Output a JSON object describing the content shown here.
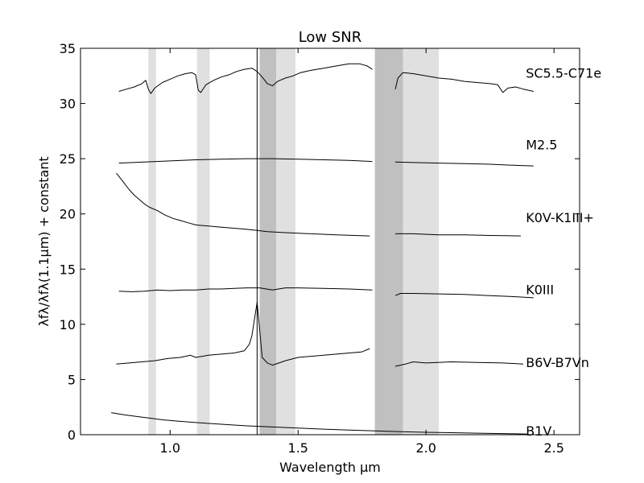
{
  "chart_data": {
    "type": "line",
    "title": "Low SNR",
    "xlabel": "Wavelength μm",
    "ylabel": "λfλ/λfλ(1.1μm) + constant",
    "xlim": [
      0.65,
      2.6
    ],
    "ylim": [
      0,
      35
    ],
    "x_ticks": [
      {
        "value": 1.0,
        "label": "1.0"
      },
      {
        "value": 1.5,
        "label": "1.5"
      },
      {
        "value": 2.0,
        "label": "2.0"
      },
      {
        "value": 2.5,
        "label": "2.5"
      }
    ],
    "y_ticks": [
      {
        "value": 0,
        "label": "0"
      },
      {
        "value": 5,
        "label": "5"
      },
      {
        "value": 10,
        "label": "10"
      },
      {
        "value": 15,
        "label": "15"
      },
      {
        "value": 20,
        "label": "20"
      },
      {
        "value": 25,
        "label": "25"
      },
      {
        "value": 30,
        "label": "30"
      },
      {
        "value": 35,
        "label": "35"
      }
    ],
    "shaded_bands": [
      {
        "x0": 0.915,
        "x1": 0.945,
        "color": "#e0e0e0"
      },
      {
        "x0": 1.105,
        "x1": 1.155,
        "color": "#e0e0e0"
      },
      {
        "x0": 1.35,
        "x1": 1.415,
        "color": "#c0c0c0"
      },
      {
        "x0": 1.415,
        "x1": 1.49,
        "color": "#e0e0e0"
      },
      {
        "x0": 1.8,
        "x1": 1.91,
        "color": "#c0c0c0"
      },
      {
        "x0": 1.91,
        "x1": 2.05,
        "color": "#e0e0e0"
      }
    ],
    "vertical_line": {
      "x": 1.34,
      "color": "#000000"
    },
    "grid": false,
    "legend": "none",
    "series": [
      {
        "name": "SC5.5-C71e",
        "label_pos": {
          "x": 2.39,
          "y": 32.7
        },
        "segments": [
          [
            [
              0.8,
              31.1
            ],
            [
              0.83,
              31.3
            ],
            [
              0.86,
              31.5
            ],
            [
              0.89,
              31.8
            ],
            [
              0.905,
              32.1
            ],
            [
              0.915,
              31.3
            ],
            [
              0.925,
              30.9
            ],
            [
              0.94,
              31.4
            ],
            [
              0.97,
              31.9
            ],
            [
              1.0,
              32.2
            ],
            [
              1.03,
              32.5
            ],
            [
              1.06,
              32.7
            ],
            [
              1.085,
              32.8
            ],
            [
              1.1,
              32.6
            ],
            [
              1.11,
              31.2
            ],
            [
              1.12,
              31.0
            ],
            [
              1.14,
              31.7
            ],
            [
              1.17,
              32.1
            ],
            [
              1.2,
              32.4
            ],
            [
              1.23,
              32.6
            ],
            [
              1.26,
              32.9
            ],
            [
              1.29,
              33.1
            ],
            [
              1.32,
              33.2
            ],
            [
              1.34,
              32.9
            ],
            [
              1.36,
              32.4
            ],
            [
              1.38,
              31.8
            ],
            [
              1.4,
              31.6
            ],
            [
              1.42,
              32.0
            ],
            [
              1.45,
              32.3
            ],
            [
              1.48,
              32.5
            ],
            [
              1.51,
              32.8
            ],
            [
              1.55,
              33.0
            ],
            [
              1.6,
              33.2
            ],
            [
              1.65,
              33.4
            ],
            [
              1.7,
              33.6
            ],
            [
              1.74,
              33.6
            ],
            [
              1.77,
              33.4
            ],
            [
              1.79,
              33.1
            ]
          ],
          [
            [
              1.88,
              31.3
            ],
            [
              1.89,
              32.3
            ],
            [
              1.91,
              32.8
            ],
            [
              1.95,
              32.7
            ],
            [
              2.0,
              32.5
            ],
            [
              2.05,
              32.3
            ],
            [
              2.1,
              32.2
            ],
            [
              2.15,
              32.0
            ],
            [
              2.2,
              31.9
            ],
            [
              2.25,
              31.8
            ],
            [
              2.28,
              31.7
            ],
            [
              2.3,
              31.0
            ],
            [
              2.32,
              31.4
            ],
            [
              2.35,
              31.5
            ],
            [
              2.38,
              31.3
            ],
            [
              2.42,
              31.1
            ]
          ]
        ]
      },
      {
        "name": "M2.5",
        "label_pos": {
          "x": 2.39,
          "y": 26.2
        },
        "segments": [
          [
            [
              0.8,
              24.6
            ],
            [
              0.9,
              24.7
            ],
            [
              1.0,
              24.8
            ],
            [
              1.1,
              24.9
            ],
            [
              1.2,
              24.95
            ],
            [
              1.3,
              25.0
            ],
            [
              1.4,
              25.0
            ],
            [
              1.5,
              24.95
            ],
            [
              1.6,
              24.9
            ],
            [
              1.7,
              24.85
            ],
            [
              1.79,
              24.75
            ]
          ],
          [
            [
              1.88,
              24.7
            ],
            [
              1.95,
              24.65
            ],
            [
              2.05,
              24.6
            ],
            [
              2.15,
              24.55
            ],
            [
              2.25,
              24.5
            ],
            [
              2.35,
              24.4
            ],
            [
              2.42,
              24.35
            ]
          ]
        ]
      },
      {
        "name": "K0V-K1III+",
        "label_pos": {
          "x": 2.39,
          "y": 19.6
        },
        "segments": [
          [
            [
              0.79,
              23.7
            ],
            [
              0.8,
              23.4
            ],
            [
              0.82,
              22.8
            ],
            [
              0.84,
              22.2
            ],
            [
              0.86,
              21.7
            ],
            [
              0.88,
              21.3
            ],
            [
              0.9,
              20.9
            ],
            [
              0.92,
              20.6
            ],
            [
              0.95,
              20.3
            ],
            [
              0.98,
              19.9
            ],
            [
              1.01,
              19.6
            ],
            [
              1.04,
              19.4
            ],
            [
              1.07,
              19.2
            ],
            [
              1.1,
              19.0
            ],
            [
              1.15,
              18.9
            ],
            [
              1.2,
              18.8
            ],
            [
              1.25,
              18.7
            ],
            [
              1.3,
              18.6
            ],
            [
              1.34,
              18.5
            ],
            [
              1.38,
              18.4
            ],
            [
              1.45,
              18.3
            ],
            [
              1.55,
              18.2
            ],
            [
              1.65,
              18.1
            ],
            [
              1.78,
              18.0
            ]
          ],
          [
            [
              1.88,
              18.2
            ],
            [
              1.95,
              18.2
            ],
            [
              2.05,
              18.1
            ],
            [
              2.15,
              18.1
            ],
            [
              2.25,
              18.05
            ],
            [
              2.37,
              18.0
            ]
          ]
        ]
      },
      {
        "name": "K0III",
        "label_pos": {
          "x": 2.39,
          "y": 13.1
        },
        "segments": [
          [
            [
              0.8,
              13.0
            ],
            [
              0.85,
              12.95
            ],
            [
              0.9,
              13.0
            ],
            [
              0.95,
              13.1
            ],
            [
              1.0,
              13.05
            ],
            [
              1.05,
              13.1
            ],
            [
              1.1,
              13.1
            ],
            [
              1.15,
              13.2
            ],
            [
              1.2,
              13.2
            ],
            [
              1.25,
              13.25
            ],
            [
              1.3,
              13.3
            ],
            [
              1.35,
              13.3
            ],
            [
              1.4,
              13.1
            ],
            [
              1.45,
              13.3
            ],
            [
              1.5,
              13.3
            ],
            [
              1.6,
              13.25
            ],
            [
              1.7,
              13.2
            ],
            [
              1.79,
              13.1
            ]
          ],
          [
            [
              1.88,
              12.6
            ],
            [
              1.9,
              12.8
            ],
            [
              1.95,
              12.8
            ],
            [
              2.05,
              12.75
            ],
            [
              2.15,
              12.7
            ],
            [
              2.25,
              12.6
            ],
            [
              2.35,
              12.5
            ],
            [
              2.42,
              12.4
            ]
          ]
        ]
      },
      {
        "name": "B6V-B7Vn",
        "label_pos": {
          "x": 2.39,
          "y": 6.5
        },
        "segments": [
          [
            [
              0.79,
              6.4
            ],
            [
              0.84,
              6.5
            ],
            [
              0.89,
              6.6
            ],
            [
              0.94,
              6.7
            ],
            [
              0.99,
              6.9
            ],
            [
              1.04,
              7.0
            ],
            [
              1.08,
              7.2
            ],
            [
              1.1,
              7.0
            ],
            [
              1.15,
              7.2
            ],
            [
              1.2,
              7.3
            ],
            [
              1.25,
              7.4
            ],
            [
              1.29,
              7.6
            ],
            [
              1.31,
              8.2
            ],
            [
              1.32,
              9.0
            ],
            [
              1.34,
              12.0
            ],
            [
              1.36,
              7.0
            ],
            [
              1.38,
              6.5
            ],
            [
              1.4,
              6.3
            ],
            [
              1.45,
              6.7
            ],
            [
              1.5,
              7.0
            ],
            [
              1.55,
              7.1
            ],
            [
              1.6,
              7.2
            ],
            [
              1.65,
              7.3
            ],
            [
              1.7,
              7.4
            ],
            [
              1.75,
              7.5
            ],
            [
              1.78,
              7.8
            ]
          ],
          [
            [
              1.88,
              6.2
            ],
            [
              1.92,
              6.4
            ],
            [
              1.95,
              6.6
            ],
            [
              2.0,
              6.5
            ],
            [
              2.1,
              6.6
            ],
            [
              2.2,
              6.55
            ],
            [
              2.3,
              6.5
            ],
            [
              2.38,
              6.4
            ]
          ]
        ]
      },
      {
        "name": "B1V",
        "label_pos": {
          "x": 2.39,
          "y": 0.3
        },
        "segments": [
          [
            [
              0.77,
              2.0
            ],
            [
              0.82,
              1.8
            ],
            [
              0.87,
              1.65
            ],
            [
              0.92,
              1.5
            ],
            [
              0.97,
              1.35
            ],
            [
              1.02,
              1.25
            ],
            [
              1.1,
              1.1
            ],
            [
              1.2,
              0.95
            ],
            [
              1.3,
              0.8
            ],
            [
              1.4,
              0.7
            ],
            [
              1.5,
              0.6
            ],
            [
              1.6,
              0.5
            ],
            [
              1.7,
              0.42
            ],
            [
              1.8,
              0.35
            ],
            [
              1.9,
              0.28
            ],
            [
              2.0,
              0.22
            ],
            [
              2.1,
              0.18
            ],
            [
              2.2,
              0.14
            ],
            [
              2.3,
              0.1
            ],
            [
              2.4,
              0.06
            ]
          ]
        ]
      }
    ]
  }
}
